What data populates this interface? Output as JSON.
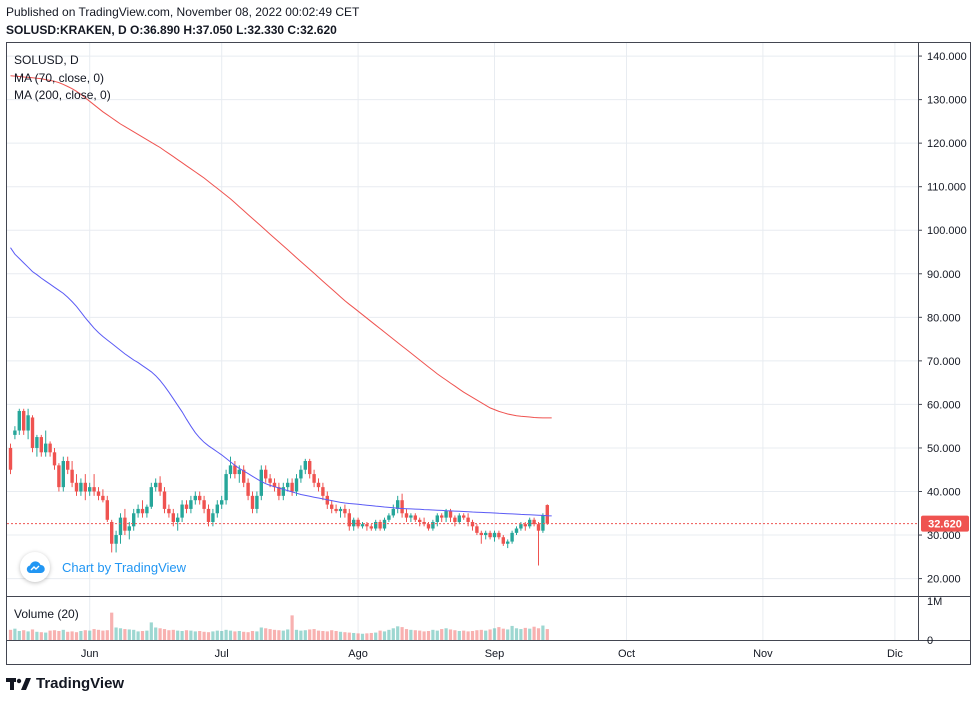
{
  "header": {
    "published": "Published on TradingView.com, November 08, 2022 00:02:49 CET",
    "ohlc": "SOLUSD:KRAKEN, D O:36.890 H:37.050 L:32.330 C:32.620"
  },
  "legend": {
    "symbol": "SOLUSD, D",
    "ma70": "MA (70, close, 0)",
    "ma200": "MA (200, close, 0)",
    "volume": "Volume (20)"
  },
  "badge": {
    "text": "Chart by TradingView"
  },
  "footer": {
    "logo_text": "TradingView"
  },
  "last_price_label": "32.620",
  "colors": {
    "up": "#26a69a",
    "down": "#ef5350",
    "ma70": "#5b5bf5",
    "ma200": "#ef5350",
    "badge": "#2196f3"
  },
  "chart_data": {
    "type": "candlestick",
    "symbol": "SOLUSD",
    "interval": "D",
    "ylim": [
      16,
      143
    ],
    "y_ticks": [
      "20.000",
      "30.000",
      "40.000",
      "50.000",
      "60.000",
      "70.000",
      "80.000",
      "90.000",
      "100.000",
      "110.000",
      "120.000",
      "130.000",
      "140.000"
    ],
    "y_tick_values": [
      20,
      30,
      40,
      50,
      60,
      70,
      80,
      90,
      100,
      110,
      120,
      130,
      140
    ],
    "x_ticks": [
      {
        "label": "Jun",
        "day": 18
      },
      {
        "label": "Jul",
        "day": 48
      },
      {
        "label": "Ago",
        "day": 79
      },
      {
        "label": "Sep",
        "day": 110
      },
      {
        "label": "Oct",
        "day": 140
      },
      {
        "label": "Nov",
        "day": 171
      },
      {
        "label": "Dic",
        "day": 201
      }
    ],
    "volume_ticks": [
      "1M",
      "0"
    ],
    "volume_tick_values": [
      1000000,
      0
    ],
    "volume_max": 1100000,
    "candles": [
      {
        "o": 50,
        "h": 51,
        "l": 44,
        "c": 45
      },
      {
        "o": 53,
        "h": 55,
        "l": 52,
        "c": 54
      },
      {
        "o": 54,
        "h": 59,
        "l": 53,
        "c": 58.5
      },
      {
        "o": 58.5,
        "h": 59,
        "l": 53,
        "c": 54
      },
      {
        "o": 54,
        "h": 59,
        "l": 52,
        "c": 57.5
      },
      {
        "o": 57,
        "h": 57.5,
        "l": 49,
        "c": 50
      },
      {
        "o": 50,
        "h": 53,
        "l": 48,
        "c": 52.5
      },
      {
        "o": 52.5,
        "h": 53,
        "l": 48,
        "c": 49
      },
      {
        "o": 49,
        "h": 54,
        "l": 48,
        "c": 51
      },
      {
        "o": 51,
        "h": 51.5,
        "l": 48,
        "c": 49
      },
      {
        "o": 49,
        "h": 50,
        "l": 45,
        "c": 46
      },
      {
        "o": 46,
        "h": 46.5,
        "l": 40,
        "c": 41
      },
      {
        "o": 41,
        "h": 48,
        "l": 40,
        "c": 47
      },
      {
        "o": 47,
        "h": 48,
        "l": 44,
        "c": 45
      },
      {
        "o": 45,
        "h": 47,
        "l": 41,
        "c": 42
      },
      {
        "o": 42,
        "h": 44,
        "l": 39,
        "c": 40
      },
      {
        "o": 40,
        "h": 43,
        "l": 39,
        "c": 42
      },
      {
        "o": 42,
        "h": 44,
        "l": 38,
        "c": 40
      },
      {
        "o": 40,
        "h": 42,
        "l": 39,
        "c": 41
      },
      {
        "o": 41,
        "h": 44,
        "l": 39,
        "c": 40
      },
      {
        "o": 40,
        "h": 41,
        "l": 38,
        "c": 39
      },
      {
        "o": 39,
        "h": 40.5,
        "l": 37.5,
        "c": 38
      },
      {
        "o": 38,
        "h": 39,
        "l": 33,
        "c": 33.5
      },
      {
        "o": 33,
        "h": 33.5,
        "l": 26,
        "c": 28
      },
      {
        "o": 28,
        "h": 31,
        "l": 26,
        "c": 30
      },
      {
        "o": 30,
        "h": 35,
        "l": 28,
        "c": 34
      },
      {
        "o": 34,
        "h": 36,
        "l": 30,
        "c": 31
      },
      {
        "o": 31,
        "h": 33,
        "l": 29,
        "c": 32
      },
      {
        "o": 32,
        "h": 36,
        "l": 31,
        "c": 35
      },
      {
        "o": 35,
        "h": 37,
        "l": 34,
        "c": 36
      },
      {
        "o": 36,
        "h": 38,
        "l": 34,
        "c": 35
      },
      {
        "o": 35,
        "h": 37,
        "l": 34,
        "c": 36.5
      },
      {
        "o": 36.5,
        "h": 42,
        "l": 36,
        "c": 41
      },
      {
        "o": 41,
        "h": 43,
        "l": 40,
        "c": 42
      },
      {
        "o": 42,
        "h": 43.5,
        "l": 39,
        "c": 40
      },
      {
        "o": 40,
        "h": 41,
        "l": 35,
        "c": 36
      },
      {
        "o": 36,
        "h": 37,
        "l": 34,
        "c": 35
      },
      {
        "o": 35,
        "h": 36,
        "l": 32,
        "c": 33
      },
      {
        "o": 33,
        "h": 35,
        "l": 31,
        "c": 34
      },
      {
        "o": 34,
        "h": 38,
        "l": 33,
        "c": 37
      },
      {
        "o": 37,
        "h": 38,
        "l": 35,
        "c": 36
      },
      {
        "o": 36,
        "h": 39,
        "l": 35,
        "c": 38
      },
      {
        "o": 38,
        "h": 40,
        "l": 37,
        "c": 39
      },
      {
        "o": 39,
        "h": 40,
        "l": 37,
        "c": 38
      },
      {
        "o": 38,
        "h": 39,
        "l": 35,
        "c": 36
      },
      {
        "o": 36,
        "h": 37,
        "l": 32,
        "c": 33
      },
      {
        "o": 33,
        "h": 36,
        "l": 32,
        "c": 35
      },
      {
        "o": 35,
        "h": 38,
        "l": 34,
        "c": 37
      },
      {
        "o": 37,
        "h": 39,
        "l": 36,
        "c": 38
      },
      {
        "o": 38,
        "h": 45,
        "l": 37,
        "c": 44
      },
      {
        "o": 44,
        "h": 48,
        "l": 43,
        "c": 46
      },
      {
        "o": 46,
        "h": 47,
        "l": 43,
        "c": 44
      },
      {
        "o": 44,
        "h": 46,
        "l": 42,
        "c": 45
      },
      {
        "o": 45,
        "h": 46,
        "l": 41,
        "c": 42
      },
      {
        "o": 42,
        "h": 43,
        "l": 38,
        "c": 39
      },
      {
        "o": 39,
        "h": 40,
        "l": 35,
        "c": 36
      },
      {
        "o": 36,
        "h": 40,
        "l": 35,
        "c": 39
      },
      {
        "o": 39,
        "h": 46,
        "l": 38,
        "c": 45
      },
      {
        "o": 45,
        "h": 46,
        "l": 42,
        "c": 43
      },
      {
        "o": 43,
        "h": 44,
        "l": 41,
        "c": 42
      },
      {
        "o": 42,
        "h": 43,
        "l": 40,
        "c": 41
      },
      {
        "o": 41,
        "h": 42,
        "l": 38,
        "c": 39
      },
      {
        "o": 39,
        "h": 42,
        "l": 38,
        "c": 41
      },
      {
        "o": 41,
        "h": 43,
        "l": 40,
        "c": 42
      },
      {
        "o": 42,
        "h": 43,
        "l": 39,
        "c": 40
      },
      {
        "o": 40,
        "h": 44,
        "l": 39,
        "c": 43
      },
      {
        "o": 43,
        "h": 46,
        "l": 42,
        "c": 45
      },
      {
        "o": 45,
        "h": 47.5,
        "l": 44,
        "c": 47
      },
      {
        "o": 47,
        "h": 47.5,
        "l": 43,
        "c": 44
      },
      {
        "o": 44,
        "h": 45,
        "l": 41,
        "c": 42
      },
      {
        "o": 42,
        "h": 43,
        "l": 40,
        "c": 41
      },
      {
        "o": 41,
        "h": 42,
        "l": 38,
        "c": 39
      },
      {
        "o": 39,
        "h": 40,
        "l": 36,
        "c": 37
      },
      {
        "o": 37,
        "h": 38,
        "l": 35,
        "c": 36
      },
      {
        "o": 36,
        "h": 37,
        "l": 35,
        "c": 35.5
      },
      {
        "o": 35.5,
        "h": 36.5,
        "l": 34,
        "c": 36
      },
      {
        "o": 36,
        "h": 37,
        "l": 34,
        "c": 35
      },
      {
        "o": 35,
        "h": 36,
        "l": 31,
        "c": 32
      },
      {
        "o": 32,
        "h": 34,
        "l": 31,
        "c": 33.5
      },
      {
        "o": 33.5,
        "h": 34,
        "l": 31.5,
        "c": 32
      },
      {
        "o": 32,
        "h": 33,
        "l": 31.5,
        "c": 32.5
      },
      {
        "o": 32.5,
        "h": 33,
        "l": 31,
        "c": 32
      },
      {
        "o": 32,
        "h": 32.5,
        "l": 31,
        "c": 31.5
      },
      {
        "o": 31.5,
        "h": 33.5,
        "l": 31,
        "c": 33
      },
      {
        "o": 33,
        "h": 33.5,
        "l": 31,
        "c": 31.5
      },
      {
        "o": 31.5,
        "h": 34,
        "l": 31,
        "c": 33.5
      },
      {
        "o": 33.5,
        "h": 35,
        "l": 33,
        "c": 34.5
      },
      {
        "o": 34.5,
        "h": 37,
        "l": 34,
        "c": 36
      },
      {
        "o": 36,
        "h": 39,
        "l": 35,
        "c": 38
      },
      {
        "o": 38,
        "h": 39.5,
        "l": 34,
        "c": 35
      },
      {
        "o": 35,
        "h": 36,
        "l": 33,
        "c": 34
      },
      {
        "o": 34,
        "h": 35,
        "l": 33,
        "c": 34.5
      },
      {
        "o": 34.5,
        "h": 35,
        "l": 33,
        "c": 33.5
      },
      {
        "o": 33.5,
        "h": 34,
        "l": 32,
        "c": 33
      },
      {
        "o": 33,
        "h": 34,
        "l": 32,
        "c": 32.5
      },
      {
        "o": 32.5,
        "h": 33,
        "l": 31,
        "c": 31.5
      },
      {
        "o": 31.5,
        "h": 33.5,
        "l": 31,
        "c": 33
      },
      {
        "o": 33,
        "h": 35,
        "l": 32,
        "c": 34.5
      },
      {
        "o": 34.5,
        "h": 35,
        "l": 33,
        "c": 34
      },
      {
        "o": 34,
        "h": 36,
        "l": 33,
        "c": 35.5
      },
      {
        "o": 35.5,
        "h": 36,
        "l": 33,
        "c": 34
      },
      {
        "o": 34,
        "h": 34.5,
        "l": 32,
        "c": 33
      },
      {
        "o": 33,
        "h": 35,
        "l": 32.5,
        "c": 34.5
      },
      {
        "o": 34.5,
        "h": 35,
        "l": 33.5,
        "c": 34
      },
      {
        "o": 34,
        "h": 35,
        "l": 32,
        "c": 33
      },
      {
        "o": 33,
        "h": 33.5,
        "l": 31,
        "c": 32
      },
      {
        "o": 32,
        "h": 32.5,
        "l": 30,
        "c": 30.5
      },
      {
        "o": 30.5,
        "h": 31,
        "l": 28,
        "c": 30
      },
      {
        "o": 30,
        "h": 31,
        "l": 29,
        "c": 30.5
      },
      {
        "o": 30.5,
        "h": 31,
        "l": 29,
        "c": 29.5
      },
      {
        "o": 29.5,
        "h": 31,
        "l": 28.5,
        "c": 30.5
      },
      {
        "o": 30.5,
        "h": 31,
        "l": 29,
        "c": 29.5
      },
      {
        "o": 29.5,
        "h": 30,
        "l": 27.5,
        "c": 28
      },
      {
        "o": 28,
        "h": 29,
        "l": 27,
        "c": 28.5
      },
      {
        "o": 28.5,
        "h": 31,
        "l": 28,
        "c": 30.5
      },
      {
        "o": 30.5,
        "h": 32,
        "l": 30,
        "c": 31.5
      },
      {
        "o": 31.5,
        "h": 33,
        "l": 31,
        "c": 32.5
      },
      {
        "o": 32.5,
        "h": 33,
        "l": 31,
        "c": 32
      },
      {
        "o": 32,
        "h": 34,
        "l": 31.5,
        "c": 33.5
      },
      {
        "o": 33.5,
        "h": 34,
        "l": 32,
        "c": 32.5
      },
      {
        "o": 32.5,
        "h": 33,
        "l": 23,
        "c": 31
      },
      {
        "o": 31,
        "h": 35,
        "l": 30.5,
        "c": 34.5
      },
      {
        "o": 36.89,
        "h": 37.05,
        "l": 32.33,
        "c": 32.62
      }
    ],
    "ma70": [
      96,
      94.5,
      93.5,
      92.5,
      91.5,
      90.5,
      89.8,
      89,
      88.3,
      87.6,
      86.9,
      86.2,
      85.5,
      84.6,
      83.6,
      82.5,
      81.2,
      79.9,
      78.7,
      77.5,
      76.5,
      75.6,
      74.8,
      74,
      73.2,
      72.4,
      71.6,
      70.9,
      70.2,
      69.6,
      68.9,
      68.2,
      67.5,
      66.6,
      65.5,
      64.2,
      62.8,
      61.3,
      59.8,
      58.3,
      56.6,
      55,
      53.5,
      52.3,
      51.3,
      50.5,
      49.8,
      49.1,
      48.4,
      47.6,
      46.8,
      46,
      45.3,
      44.7,
      44.1,
      43.5,
      42.9,
      42.3,
      41.8,
      41.4,
      41.1,
      40.8,
      40.5,
      40.2,
      39.9,
      39.6,
      39.3,
      39.1,
      38.9,
      38.7,
      38.5,
      38.3,
      38.1,
      37.9,
      37.7,
      37.5,
      37.35,
      37.25,
      37.15,
      37.05,
      36.95,
      36.85,
      36.75,
      36.65,
      36.55,
      36.45,
      36.35,
      36.25,
      36.15,
      36.1,
      36.05,
      36,
      35.95,
      35.9,
      35.85,
      35.8,
      35.75,
      35.7,
      35.65,
      35.6,
      35.55,
      35.5,
      35.45,
      35.4,
      35.35,
      35.3,
      35.25,
      35.2,
      35.15,
      35.1,
      35.05,
      35,
      34.95,
      34.9,
      34.85,
      34.8,
      34.75,
      34.7,
      34.65,
      34.6,
      34.55,
      34.5,
      34.45,
      34.4
    ],
    "ma200": [
      135.5,
      135.4,
      135.3,
      135.2,
      135.1,
      135,
      134.9,
      134.8,
      134.6,
      134.4,
      134.2,
      133.9,
      133.5,
      133,
      132.5,
      131.9,
      131.2,
      130.4,
      129.6,
      128.8,
      128,
      127.2,
      126.5,
      125.8,
      125.1,
      124.4,
      123.8,
      123.2,
      122.6,
      122,
      121.4,
      120.8,
      120.2,
      119.6,
      119,
      118.3,
      117.6,
      116.9,
      116.2,
      115.5,
      114.8,
      114.1,
      113.4,
      112.7,
      112,
      111.2,
      110.4,
      109.6,
      108.8,
      108,
      107.2,
      106.3,
      105.4,
      104.5,
      103.6,
      102.7,
      101.8,
      100.9,
      100,
      99.1,
      98.2,
      97.3,
      96.4,
      95.5,
      94.6,
      93.7,
      92.8,
      91.9,
      91,
      90.1,
      89.2,
      88.3,
      87.4,
      86.5,
      85.6,
      84.7,
      83.8,
      83,
      82.2,
      81.4,
      80.6,
      79.8,
      79,
      78.2,
      77.4,
      76.6,
      75.8,
      75,
      74.2,
      73.4,
      72.6,
      71.8,
      71,
      70.2,
      69.4,
      68.6,
      67.8,
      67,
      66.3,
      65.6,
      64.9,
      64.2,
      63.5,
      62.8,
      62.2,
      61.6,
      61,
      60.4,
      59.8,
      59.2,
      58.8,
      58.4,
      58.1,
      57.8,
      57.6,
      57.4,
      57.3,
      57.2,
      57.1,
      57,
      56.95,
      56.9,
      56.9,
      56.9
    ],
    "volumes": [
      260000,
      290000,
      230000,
      250000,
      220000,
      270000,
      210000,
      200000,
      190000,
      240000,
      250000,
      230000,
      260000,
      210000,
      220000,
      200000,
      230000,
      250000,
      240000,
      280000,
      260000,
      240000,
      250000,
      700000,
      320000,
      300000,
      280000,
      270000,
      260000,
      220000,
      230000,
      240000,
      450000,
      320000,
      300000,
      280000,
      250000,
      260000,
      240000,
      230000,
      250000,
      240000,
      220000,
      230000,
      210000,
      200000,
      220000,
      240000,
      230000,
      260000,
      240000,
      220000,
      230000,
      210000,
      200000,
      230000,
      220000,
      320000,
      300000,
      280000,
      260000,
      250000,
      240000,
      270000,
      630000,
      260000,
      240000,
      250000,
      270000,
      280000,
      240000,
      230000,
      220000,
      250000,
      230000,
      210000,
      200000,
      190000,
      180000,
      170000,
      160000,
      170000,
      180000,
      190000,
      240000,
      220000,
      260000,
      300000,
      350000,
      330000,
      280000,
      260000,
      250000,
      240000,
      220000,
      230000,
      260000,
      240000,
      280000,
      300000,
      270000,
      250000,
      230000,
      240000,
      220000,
      230000,
      250000,
      260000,
      240000,
      270000,
      300000,
      330000,
      290000,
      270000,
      360000,
      300000,
      280000,
      310000,
      290000,
      340000,
      300000,
      370000,
      280000
    ]
  }
}
